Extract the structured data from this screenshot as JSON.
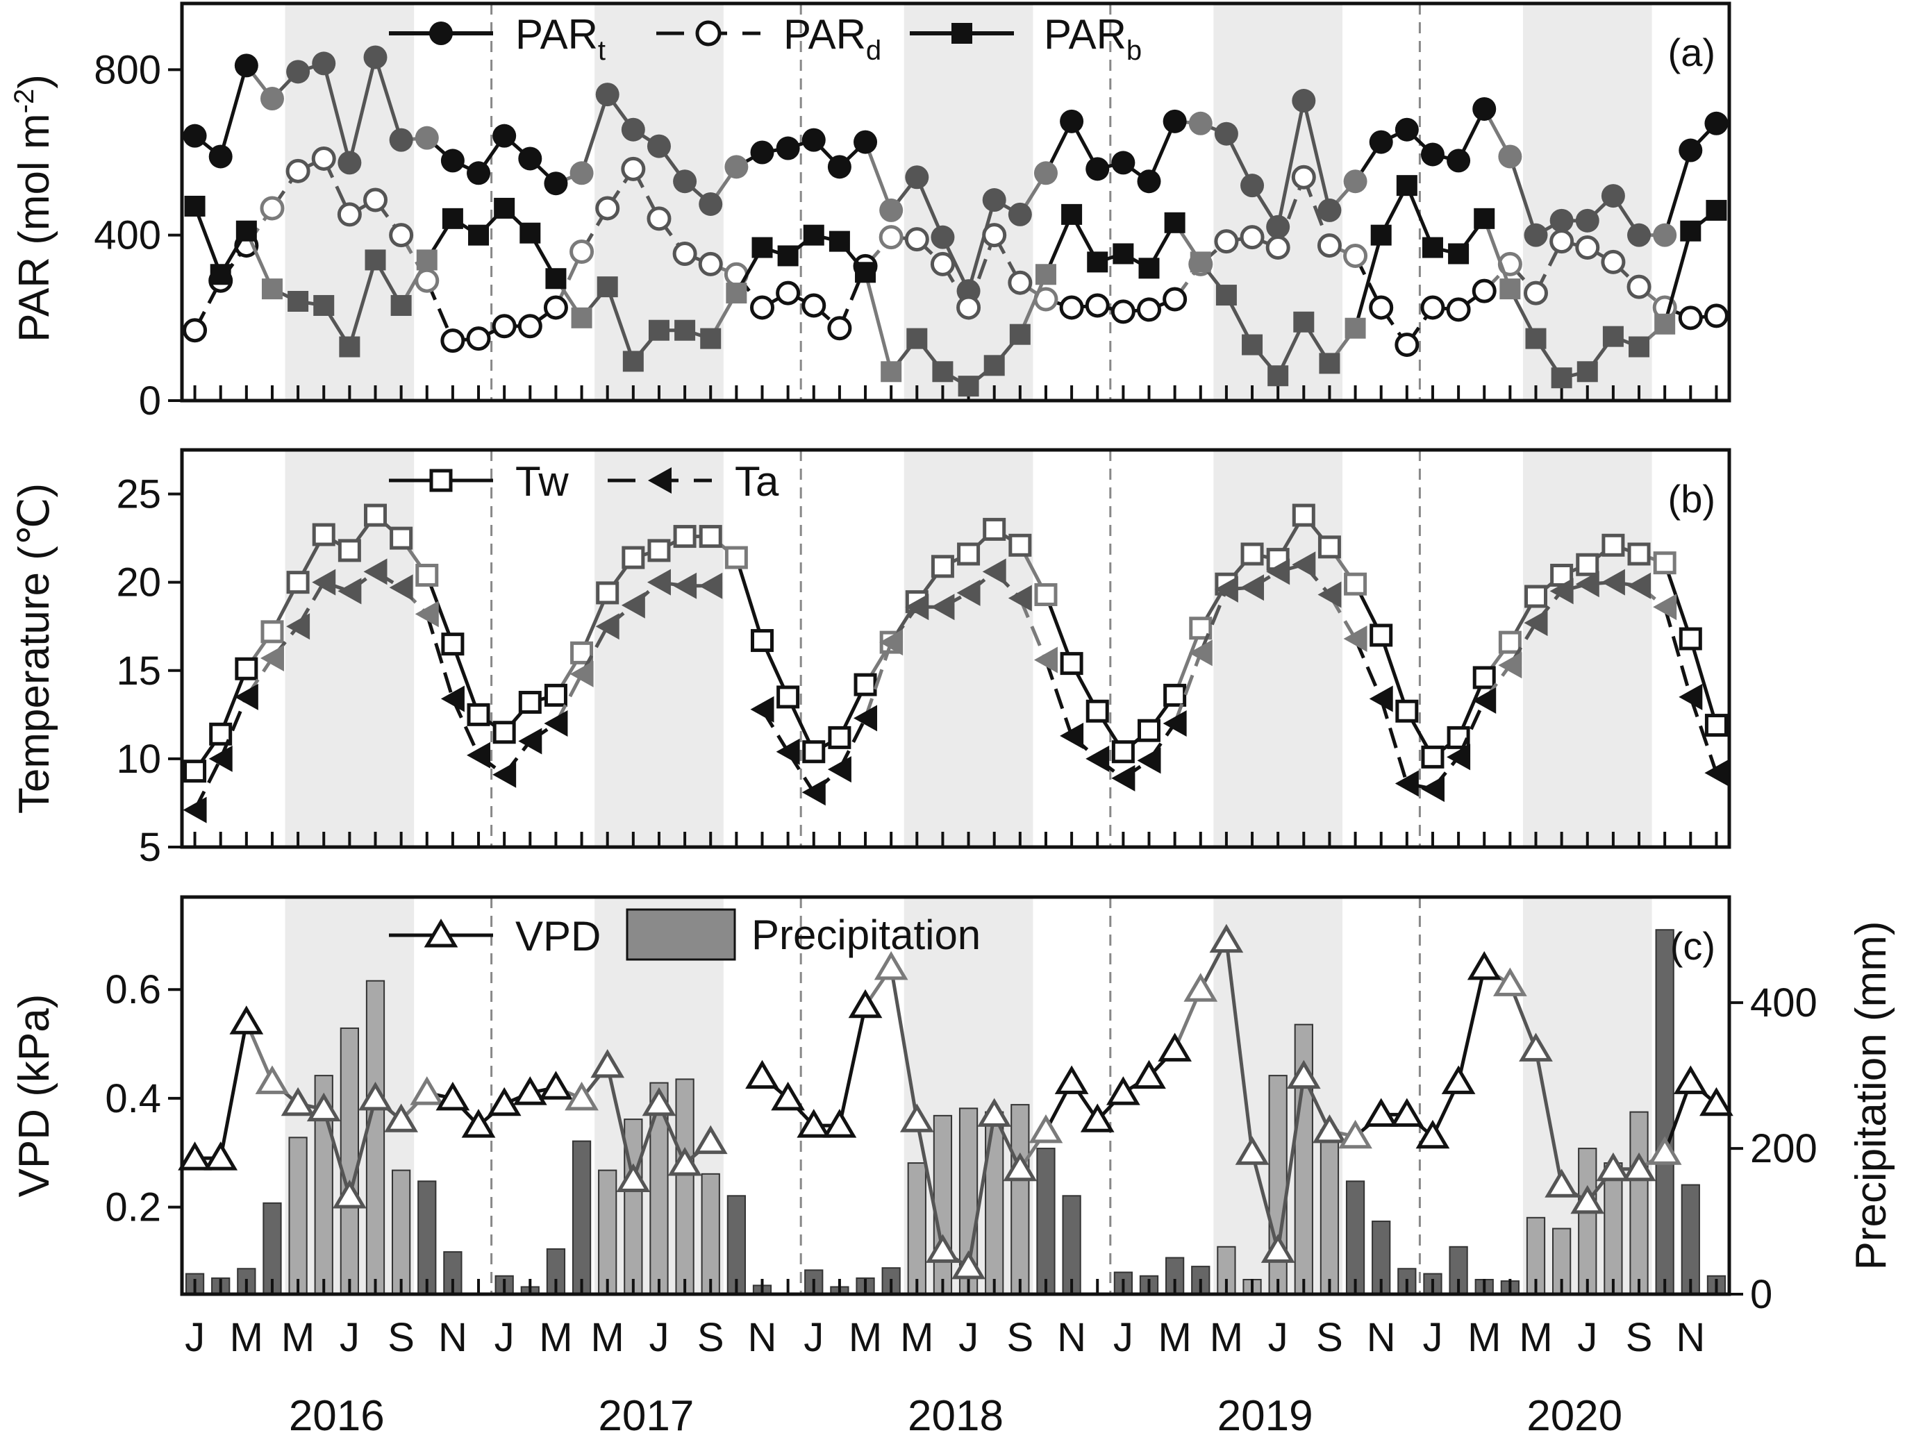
{
  "years": [
    "2016",
    "2017",
    "2018",
    "2019",
    "2020"
  ],
  "month_labels": [
    "J",
    "M",
    "M",
    "J",
    "S",
    "N"
  ],
  "colors": {
    "dark": "#111111",
    "grey": "#555555",
    "light": "#7a7a7a",
    "band": "#ebebeb",
    "bar_dark": "#666666",
    "bar_light": "#a9a9a9"
  },
  "panels": {
    "a": {
      "label": "(a)",
      "ylabel_main": "PAR (mol m",
      "ylabel_sup": "-2",
      "ylabel_end": ")",
      "legend": {
        "t_main": "PAR",
        "t_sub": "t",
        "d_main": "PAR",
        "d_sub": "d",
        "b_main": "PAR",
        "b_sub": "b"
      }
    },
    "b": {
      "label": "(b)",
      "ylabel": "Temperature (℃)",
      "legend": {
        "tw": "Tw",
        "ta": "Ta"
      }
    },
    "c": {
      "label": "(c)",
      "ylabel": "VPD (kPa)",
      "y2label": "Precipitation (mm)",
      "legend": {
        "vpd": "VPD",
        "precip": "Precipitation"
      }
    }
  },
  "chart_data": [
    {
      "panel": "a",
      "type": "line",
      "x": "months Jan 2016 - Dec 2020",
      "ylim": [
        0,
        960
      ],
      "yticks": [
        0,
        400,
        800
      ],
      "series": [
        {
          "name": "PAR_t",
          "marker": "filled-circle",
          "values": [
            640,
            590,
            810,
            730,
            795,
            815,
            575,
            830,
            630,
            635,
            580,
            550,
            640,
            585,
            525,
            550,
            740,
            655,
            615,
            530,
            475,
            565,
            600,
            610,
            630,
            565,
            625,
            460,
            540,
            395,
            265,
            485,
            450,
            550,
            675,
            560,
            575,
            530,
            675,
            670,
            645,
            520,
            420,
            725,
            460,
            530,
            625,
            655,
            595,
            580,
            705,
            590,
            400,
            435,
            435,
            495,
            400,
            400,
            605,
            670
          ]
        },
        {
          "name": "PAR_d",
          "marker": "open-circle",
          "values": [
            170,
            290,
            375,
            465,
            555,
            585,
            450,
            485,
            400,
            290,
            145,
            150,
            180,
            180,
            225,
            360,
            465,
            560,
            440,
            355,
            330,
            305,
            225,
            260,
            230,
            175,
            325,
            395,
            390,
            330,
            225,
            400,
            285,
            245,
            225,
            230,
            215,
            220,
            245,
            330,
            385,
            395,
            370,
            540,
            375,
            350,
            225,
            135,
            225,
            220,
            265,
            330,
            260,
            385,
            370,
            335,
            275,
            225,
            200,
            205
          ]
        },
        {
          "name": "PAR_b",
          "marker": "filled-square",
          "values": [
            470,
            305,
            410,
            270,
            240,
            230,
            130,
            340,
            230,
            340,
            440,
            400,
            465,
            405,
            295,
            200,
            275,
            95,
            170,
            170,
            150,
            260,
            370,
            350,
            400,
            385,
            310,
            70,
            150,
            70,
            35,
            85,
            160,
            305,
            450,
            335,
            355,
            320,
            430,
            335,
            255,
            135,
            60,
            190,
            90,
            175,
            400,
            520,
            370,
            355,
            440,
            270,
            150,
            55,
            70,
            155,
            130,
            185,
            410,
            460
          ]
        }
      ]
    },
    {
      "panel": "b",
      "type": "line",
      "x": "months Jan 2016 - Dec 2020",
      "ylim": [
        5,
        27.5
      ],
      "yticks": [
        5,
        10,
        15,
        20,
        25
      ],
      "series": [
        {
          "name": "Tw",
          "marker": "open-square",
          "values": [
            9.3,
            11.4,
            15.1,
            17.2,
            20.0,
            22.7,
            21.8,
            23.8,
            22.5,
            20.4,
            16.5,
            12.5,
            11.5,
            13.2,
            13.6,
            16.0,
            19.4,
            21.4,
            21.8,
            22.6,
            22.6,
            21.4,
            16.7,
            13.5,
            10.4,
            11.2,
            14.2,
            16.6,
            18.9,
            20.9,
            21.6,
            23.0,
            22.1,
            19.3,
            15.4,
            12.7,
            10.4,
            11.6,
            13.6,
            17.4,
            19.9,
            21.6,
            21.3,
            23.8,
            22.0,
            19.9,
            17.0,
            12.7,
            10.1,
            11.2,
            14.6,
            16.6,
            19.2,
            20.4,
            21.0,
            22.1,
            21.6,
            21.1,
            16.8,
            11.9
          ]
        },
        {
          "name": "Ta",
          "marker": "filled-left-triangle",
          "values": [
            7.1,
            10.0,
            13.5,
            15.7,
            17.5,
            20.0,
            19.5,
            20.6,
            19.7,
            18.2,
            13.4,
            10.2,
            9.1,
            11.0,
            12.0,
            14.8,
            17.5,
            18.7,
            20.0,
            19.8,
            19.8,
            null,
            12.8,
            10.4,
            8.1,
            9.4,
            12.3,
            16.6,
            18.6,
            18.6,
            19.4,
            20.6,
            19.1,
            15.6,
            11.3,
            10.0,
            8.9,
            9.9,
            12.0,
            16.0,
            19.6,
            19.7,
            20.6,
            21.0,
            19.3,
            16.8,
            13.4,
            8.6,
            8.3,
            10.1,
            13.3,
            15.3,
            17.7,
            19.5,
            19.9,
            20.0,
            19.8,
            18.6,
            13.5,
            9.2
          ]
        },
        {
          "name": "VPD",
          "marker": "open-triangle",
          "axis": "panel-c-left",
          "ylim": [
            0.04,
            0.77
          ],
          "yticks": [
            0.2,
            0.4,
            0.6
          ],
          "values": [
            0.29,
            0.29,
            0.54,
            0.43,
            0.39,
            0.38,
            0.22,
            0.4,
            0.36,
            0.41,
            0.4,
            0.35,
            0.39,
            0.41,
            0.42,
            0.4,
            0.46,
            0.25,
            0.39,
            0.28,
            0.32,
            null,
            0.44,
            0.4,
            0.35,
            0.35,
            0.57,
            0.64,
            0.36,
            0.12,
            0.09,
            0.37,
            0.27,
            0.34,
            0.43,
            0.36,
            0.41,
            0.44,
            0.49,
            0.6,
            0.69,
            0.3,
            0.12,
            0.44,
            0.34,
            0.33,
            0.37,
            0.37,
            0.33,
            0.43,
            0.64,
            0.61,
            0.49,
            0.24,
            0.21,
            0.27,
            0.27,
            0.3,
            0.43,
            0.39
          ]
        },
        {
          "name": "Precipitation",
          "type": "bar",
          "axis": "panel-c-right",
          "ylim": [
            0,
            545
          ],
          "yticks": [
            0,
            200,
            400
          ],
          "values": [
            28,
            22,
            35,
            125,
            215,
            300,
            365,
            430,
            170,
            155,
            58,
            null,
            25,
            10,
            62,
            210,
            170,
            240,
            290,
            295,
            165,
            135,
            12,
            null,
            33,
            10,
            22,
            36,
            180,
            245,
            255,
            250,
            260,
            200,
            135,
            null,
            30,
            25,
            50,
            38,
            65,
            20,
            300,
            370,
            225,
            155,
            100,
            35,
            28,
            65,
            20,
            18,
            105,
            90,
            200,
            180,
            250,
            500,
            150,
            25
          ]
        }
      ]
    }
  ]
}
